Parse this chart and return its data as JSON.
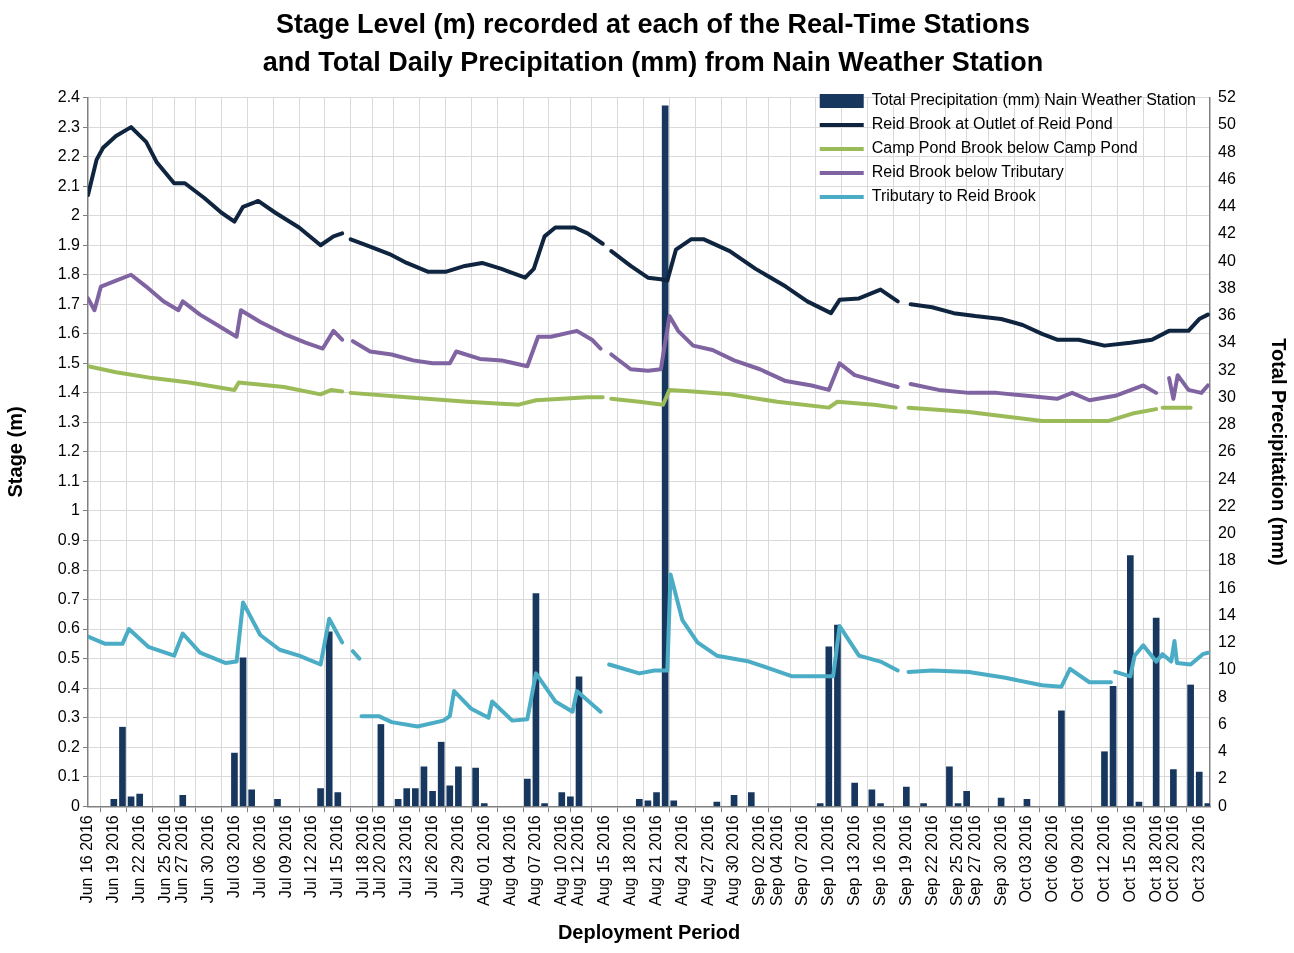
{
  "chart_data": {
    "type": "line",
    "title": "Stage Level (m) recorded at each of the Real-Time Stations and Total Daily Precipitation (mm) from Nain Weather Station",
    "xlabel": "Deployment Period",
    "ylabel": "Stage (m)",
    "y2label": "Total Precipitation (mm)",
    "legend": "top right",
    "grid": true,
    "xlim": [
      "2016-06-16",
      "2016-10-24T06:00"
    ],
    "xticks": [
      {
        "value": "2016-06-16",
        "label": "Jun 16 2016"
      },
      {
        "value": "2016-06-19",
        "label": "Jun 19 2016"
      },
      {
        "value": "2016-06-22",
        "label": "Jun 22 2016"
      },
      {
        "value": "2016-06-25",
        "label": "Jun 25 2016"
      },
      {
        "value": "2016-06-27",
        "label": "Jun 27 2016"
      },
      {
        "value": "2016-06-30",
        "label": "Jun 30 2016"
      },
      {
        "value": "2016-07-03",
        "label": "Jul 03 2016"
      },
      {
        "value": "2016-07-06",
        "label": "Jul 06 2016"
      },
      {
        "value": "2016-07-09",
        "label": "Jul 09 2016"
      },
      {
        "value": "2016-07-12",
        "label": "Jul 12 2016"
      },
      {
        "value": "2016-07-15",
        "label": "Jul 15 2016"
      },
      {
        "value": "2016-07-18",
        "label": "Jul 18 2016"
      },
      {
        "value": "2016-07-20",
        "label": "Jul 20 2016"
      },
      {
        "value": "2016-07-23",
        "label": "Jul 23 2016"
      },
      {
        "value": "2016-07-26",
        "label": "Jul 26 2016"
      },
      {
        "value": "2016-07-29",
        "label": "Jul 29 2016"
      },
      {
        "value": "2016-08-01",
        "label": "Aug 01 2016"
      },
      {
        "value": "2016-08-04",
        "label": "Aug 04 2016"
      },
      {
        "value": "2016-08-07",
        "label": "Aug 07 2016"
      },
      {
        "value": "2016-08-10",
        "label": "Aug 10 2016"
      },
      {
        "value": "2016-08-12",
        "label": "Aug 12 2016"
      },
      {
        "value": "2016-08-15",
        "label": "Aug 15 2016"
      },
      {
        "value": "2016-08-18",
        "label": "Aug 18 2016"
      },
      {
        "value": "2016-08-21",
        "label": "Aug 21 2016"
      },
      {
        "value": "2016-08-24",
        "label": "Aug 24 2016"
      },
      {
        "value": "2016-08-27",
        "label": "Aug 27 2016"
      },
      {
        "value": "2016-08-30",
        "label": "Aug 30 2016"
      },
      {
        "value": "2016-09-02",
        "label": "Sep 02 2016"
      },
      {
        "value": "2016-09-04",
        "label": "Sep 04 2016"
      },
      {
        "value": "2016-09-07",
        "label": "Sep 07 2016"
      },
      {
        "value": "2016-09-10",
        "label": "Sep 10 2016"
      },
      {
        "value": "2016-09-13",
        "label": "Sep 13 2016"
      },
      {
        "value": "2016-09-16",
        "label": "Sep 16 2016"
      },
      {
        "value": "2016-09-19",
        "label": "Sep 19 2016"
      },
      {
        "value": "2016-09-22",
        "label": "Sep 22 2016"
      },
      {
        "value": "2016-09-25",
        "label": "Sep 25 2016"
      },
      {
        "value": "2016-09-27",
        "label": "Sep 27 2016"
      },
      {
        "value": "2016-09-30",
        "label": "Sep 30 2016"
      },
      {
        "value": "2016-10-03",
        "label": "Oct 03 2016"
      },
      {
        "value": "2016-10-06",
        "label": "Oct 06 2016"
      },
      {
        "value": "2016-10-09",
        "label": "Oct 09 2016"
      },
      {
        "value": "2016-10-12",
        "label": "Oct 12 2016"
      },
      {
        "value": "2016-10-15",
        "label": "Oct 15 2016"
      },
      {
        "value": "2016-10-18",
        "label": "Oct 18 2016"
      },
      {
        "value": "2016-10-20",
        "label": "Oct 20 2016"
      },
      {
        "value": "2016-10-23",
        "label": "Oct 23 2016"
      }
    ],
    "ylim": [
      0,
      2.4
    ],
    "yticks": [
      0,
      0.1,
      0.2,
      0.3,
      0.4,
      0.5,
      0.6,
      0.7,
      0.8,
      0.9,
      1,
      1.1,
      1.2,
      1.3,
      1.4,
      1.5,
      1.6,
      1.7,
      1.8,
      1.9,
      2,
      2.1,
      2.2,
      2.3,
      2.4
    ],
    "y2lim": [
      0,
      52
    ],
    "y2ticks": [
      0,
      2,
      4,
      6,
      8,
      10,
      12,
      14,
      16,
      18,
      20,
      22,
      24,
      26,
      28,
      30,
      32,
      34,
      36,
      38,
      40,
      42,
      44,
      46,
      48,
      50,
      52
    ],
    "series": [
      {
        "name": "Total Precipitation (mm) Nain Weather Station",
        "type": "bar",
        "axis": "y2",
        "color": "#17375e",
        "x": [
          "2016-06-19",
          "2016-06-20",
          "2016-06-21",
          "2016-06-22",
          "2016-06-27",
          "2016-07-03",
          "2016-07-04",
          "2016-07-05",
          "2016-07-08",
          "2016-07-13",
          "2016-07-14",
          "2016-07-15",
          "2016-07-20",
          "2016-07-22",
          "2016-07-23",
          "2016-07-24",
          "2016-07-25",
          "2016-07-26",
          "2016-07-27",
          "2016-07-28",
          "2016-07-29",
          "2016-07-31",
          "2016-08-01",
          "2016-08-06",
          "2016-08-07",
          "2016-08-08",
          "2016-08-10",
          "2016-08-11",
          "2016-08-12",
          "2016-08-19",
          "2016-08-20",
          "2016-08-21",
          "2016-08-22",
          "2016-08-23",
          "2016-08-28",
          "2016-08-30",
          "2016-09-01",
          "2016-09-09",
          "2016-09-10",
          "2016-09-11",
          "2016-09-13",
          "2016-09-15",
          "2016-09-16",
          "2016-09-19",
          "2016-09-21",
          "2016-09-24",
          "2016-09-25",
          "2016-09-26",
          "2016-09-30",
          "2016-10-03",
          "2016-10-07",
          "2016-10-12",
          "2016-10-13",
          "2016-10-15",
          "2016-10-16",
          "2016-10-18",
          "2016-10-20",
          "2016-10-22",
          "2016-10-23",
          "2016-10-24"
        ],
        "values": [
          0.5,
          5.8,
          0.7,
          0.9,
          0.8,
          3.9,
          10.9,
          1.2,
          0.5,
          1.3,
          12.8,
          1.0,
          6.0,
          0.5,
          1.3,
          1.3,
          2.9,
          1.1,
          4.7,
          1.5,
          2.9,
          2.8,
          0.2,
          2.0,
          15.6,
          0.2,
          1.0,
          0.7,
          9.5,
          0.5,
          0.4,
          1.0,
          51.4,
          0.4,
          0.3,
          0.8,
          1.0,
          0.2,
          11.7,
          13.3,
          1.7,
          1.2,
          0.2,
          1.4,
          0.2,
          2.9,
          0.2,
          1.1,
          0.6,
          0.5,
          7.0,
          4.0,
          8.8,
          18.4,
          0.3,
          13.8,
          2.7,
          8.9,
          2.5,
          0.2
        ]
      },
      {
        "name": "Reid Brook at Outlet of Reid Pond",
        "color": "#0f243e",
        "x": [
          "2016-06-16",
          "2016-06-17",
          "2016-06-17T18:00",
          "2016-06-19T06:00",
          "2016-06-21",
          "2016-06-22T18:00",
          "2016-06-24",
          "2016-06-26",
          "2016-06-27T06:00",
          "2016-06-29T12:00",
          "2016-07-01T12:00",
          "2016-07-03",
          "2016-07-04",
          "2016-07-05T18:00",
          "2016-07-07T18:00",
          "2016-07-10T12:00",
          "2016-07-13",
          "2016-07-14T12:00",
          "2016-07-15T12:00",
          "2016-07-16",
          "2016-07-16T12:00",
          "2016-07-18T18:00",
          "2016-07-21",
          "2016-07-23",
          "2016-07-25T12:00",
          "2016-07-27T12:00",
          "2016-07-29T18:00",
          "2016-07-31T18:00",
          "2016-08-03",
          "2016-08-05T18:00",
          "2016-08-06T18:00",
          "2016-08-08",
          "2016-08-09T06:00",
          "2016-08-11T12:00",
          "2016-08-13",
          "2016-08-14T18:00",
          "2016-08-15T06:00",
          "2016-08-15T18:00",
          "2016-08-18",
          "2016-08-20",
          "2016-08-21T12:00",
          "2016-08-22T06:00",
          "2016-08-23T06:00",
          "2016-08-25",
          "2016-08-26T12:00",
          "2016-08-29T12:00",
          "2016-09-01T12:00",
          "2016-09-05",
          "2016-09-07T12:00",
          "2016-09-10T06:00",
          "2016-09-11T06:00",
          "2016-09-13T12:00",
          "2016-09-16",
          "2016-09-18",
          "2016-09-18T18:00",
          "2016-09-19T12:00",
          "2016-09-22",
          "2016-09-24T12:00",
          "2016-09-27",
          "2016-09-30",
          "2016-10-02T12:00",
          "2016-10-04T18:00",
          "2016-10-06T12:00",
          "2016-10-09",
          "2016-10-12",
          "2016-10-15",
          "2016-10-17T12:00",
          "2016-10-19T12:00",
          "2016-10-21T18:00",
          "2016-10-23",
          "2016-10-24"
        ],
        "values": [
          2.07,
          2.19,
          2.23,
          2.27,
          2.3,
          2.25,
          2.18,
          2.11,
          2.11,
          2.06,
          2.01,
          1.98,
          2.03,
          2.05,
          2.01,
          1.96,
          1.9,
          1.93,
          1.94,
          null,
          1.92,
          1.895,
          1.87,
          1.84,
          1.81,
          1.81,
          1.83,
          1.84,
          1.82,
          1.79,
          1.82,
          1.93,
          1.96,
          1.96,
          1.94,
          1.905,
          null,
          1.88,
          1.83,
          1.79,
          1.785,
          1.78,
          1.885,
          1.92,
          1.92,
          1.88,
          1.82,
          1.76,
          1.71,
          1.67,
          1.715,
          1.72,
          1.75,
          1.71,
          null,
          1.7,
          1.69,
          1.67,
          1.66,
          1.65,
          1.63,
          1.6,
          1.58,
          1.58,
          1.56,
          1.57,
          1.58,
          1.61,
          1.61,
          1.65,
          1.665
        ]
      },
      {
        "name": "Camp Pond Brook below Camp Pond",
        "color": "#9bbb59",
        "x": [
          "2016-06-16",
          "2016-06-19T06:00",
          "2016-06-23T12:00",
          "2016-06-27T18:00",
          "2016-07-03",
          "2016-07-03T12:00",
          "2016-07-08T18:00",
          "2016-07-13",
          "2016-07-14T06:00",
          "2016-07-15T12:00",
          "2016-07-16",
          "2016-07-16T12:00",
          "2016-07-23",
          "2016-07-30",
          "2016-08-05",
          "2016-08-07",
          "2016-08-13",
          "2016-08-14T18:00",
          "2016-08-15T06:00",
          "2016-08-15T18:00",
          "2016-08-19",
          "2016-08-21T18:00",
          "2016-08-22T12:00",
          "2016-08-25T06:00",
          "2016-08-29T12:00",
          "2016-09-04",
          "2016-09-10",
          "2016-09-11",
          "2016-09-15T06:00",
          "2016-09-17T18:00",
          "2016-09-18T12:00",
          "2016-09-19T06:00",
          "2016-09-26T06:00",
          "2016-09-30T12:00",
          "2016-10-04T18:00",
          "2016-10-12T12:00",
          "2016-10-15T06:00",
          "2016-10-18",
          "2016-10-18T12:00",
          "2016-10-18T18:00",
          "2016-10-22"
        ],
        "values": [
          1.49,
          1.47,
          1.45,
          1.435,
          1.41,
          1.435,
          1.42,
          1.395,
          1.41,
          1.405,
          null,
          1.4,
          1.385,
          1.37,
          1.36,
          1.375,
          1.385,
          1.385,
          null,
          1.38,
          1.37,
          1.36,
          1.41,
          1.405,
          1.395,
          1.37,
          1.35,
          1.37,
          1.36,
          1.35,
          null,
          1.35,
          1.335,
          1.32,
          1.305,
          1.305,
          1.33,
          1.345,
          null,
          1.35,
          1.35
        ]
      },
      {
        "name": "Reid Brook below Tributary",
        "color": "#8064a2",
        "x": [
          "2016-06-16",
          "2016-06-16T18:00",
          "2016-06-17T12:00",
          "2016-06-19T06:00",
          "2016-06-21",
          "2016-06-22T18:00",
          "2016-06-24T18:00",
          "2016-06-26T12:00",
          "2016-06-27",
          "2016-06-29",
          "2016-07-01",
          "2016-07-03T06:00",
          "2016-07-03T18:00",
          "2016-07-06",
          "2016-07-08T18:00",
          "2016-07-11T06:00",
          "2016-07-13T06:00",
          "2016-07-14T12:00",
          "2016-07-15T12:00",
          "2016-07-16",
          "2016-07-16T18:00",
          "2016-07-18T18:00",
          "2016-07-21T06:00",
          "2016-07-23T18:00",
          "2016-07-26",
          "2016-07-28",
          "2016-07-28T18:00",
          "2016-07-31T12:00",
          "2016-08-03",
          "2016-08-06",
          "2016-08-07T06:00",
          "2016-08-08T18:00",
          "2016-08-11T18:00",
          "2016-08-13T12:00",
          "2016-08-14T12:00",
          "2016-08-15T06:00",
          "2016-08-15T18:00",
          "2016-08-18",
          "2016-08-20",
          "2016-08-21T12:00",
          "2016-08-22T12:00",
          "2016-08-23T12:00",
          "2016-08-25T06:00",
          "2016-08-27T12:00",
          "2016-08-30",
          "2016-09-02",
          "2016-09-05",
          "2016-09-08",
          "2016-09-10",
          "2016-09-11T06:00",
          "2016-09-13",
          "2016-09-15T12:00",
          "2016-09-18",
          "2016-09-18T18:00",
          "2016-09-19T12:00",
          "2016-09-22T18:00",
          "2016-09-26T06:00",
          "2016-09-29T12:00",
          "2016-10-03",
          "2016-10-06T12:00",
          "2016-10-08T06:00",
          "2016-10-10T06:00",
          "2016-10-13T06:00",
          "2016-10-16T12:00",
          "2016-10-18",
          "2016-10-18T12:00",
          "2016-10-19T12:00",
          "2016-10-20",
          "2016-10-20T12:00",
          "2016-10-21T18:00",
          "2016-10-23T06:00",
          "2016-10-24"
        ],
        "values": [
          1.72,
          1.68,
          1.76,
          1.78,
          1.8,
          1.76,
          1.71,
          1.68,
          1.71,
          1.665,
          1.63,
          1.59,
          1.68,
          1.64,
          1.6,
          1.57,
          1.55,
          1.61,
          1.58,
          null,
          1.575,
          1.54,
          1.53,
          1.51,
          1.5,
          1.5,
          1.54,
          1.515,
          1.51,
          1.49,
          1.59,
          1.59,
          1.61,
          1.58,
          1.55,
          null,
          1.53,
          1.48,
          1.475,
          1.48,
          1.66,
          1.61,
          1.56,
          1.545,
          1.51,
          1.48,
          1.44,
          1.425,
          1.41,
          1.5,
          1.46,
          1.44,
          1.42,
          null,
          1.43,
          1.41,
          1.4,
          1.4,
          1.39,
          1.38,
          1.4,
          1.375,
          1.39,
          1.425,
          1.4,
          null,
          1.45,
          1.38,
          1.46,
          1.41,
          1.4,
          1.425
        ]
      },
      {
        "name": "Tributary to Reid Brook",
        "color": "#4bacc6",
        "x": [
          "2016-06-16",
          "2016-06-18",
          "2016-06-20",
          "2016-06-20T18:00",
          "2016-06-23",
          "2016-06-26",
          "2016-06-27",
          "2016-06-29",
          "2016-07-02",
          "2016-07-03T06:00",
          "2016-07-04",
          "2016-07-06",
          "2016-07-08T06:00",
          "2016-07-10T12:00",
          "2016-07-13",
          "2016-07-14",
          "2016-07-15T12:00",
          "2016-07-16",
          "2016-07-16T18:00",
          "2016-07-17T12:00",
          "2016-07-17T15:00",
          "2016-07-17T18:00",
          "2016-07-19T18:00",
          "2016-07-21T06:00",
          "2016-07-24T06:00",
          "2016-07-27T06:00",
          "2016-07-28",
          "2016-07-28T12:00",
          "2016-07-30T12:00",
          "2016-08-01T12:00",
          "2016-08-01T22:00",
          "2016-08-04T06:00",
          "2016-08-06",
          "2016-08-07",
          "2016-08-09T06:00",
          "2016-08-11T06:00",
          "2016-08-11T18:00",
          "2016-08-14T12:00",
          "2016-08-15",
          "2016-08-15T12:00",
          "2016-08-19",
          "2016-08-20T18:00",
          "2016-08-22T06:00",
          "2016-08-22T15:00",
          "2016-08-24",
          "2016-08-25T18:00",
          "2016-08-28",
          "2016-08-31T18:00",
          "2016-09-05T18:00",
          "2016-09-10T12:00",
          "2016-09-11T06:00",
          "2016-09-13T12:00",
          "2016-09-16",
          "2016-09-18",
          "2016-09-18T18:00",
          "2016-09-19T06:00",
          "2016-09-22",
          "2016-09-26T06:00",
          "2016-09-30T12:00",
          "2016-10-04T18:00",
          "2016-10-07",
          "2016-10-08",
          "2016-10-10T06:00",
          "2016-10-12T18:00",
          "2016-10-13",
          "2016-10-13T06:00",
          "2016-10-15",
          "2016-10-15T12:00",
          "2016-10-16T12:00",
          "2016-10-18",
          "2016-10-18T18:00",
          "2016-10-19T18:00",
          "2016-10-20T03:00",
          "2016-10-20T10:00",
          "2016-10-22",
          "2016-10-23T10:00",
          "2016-10-24"
        ],
        "values": [
          0.575,
          0.55,
          0.55,
          0.6,
          0.54,
          0.51,
          0.585,
          0.52,
          0.485,
          0.49,
          0.69,
          0.58,
          0.53,
          0.51,
          0.48,
          0.635,
          0.555,
          null,
          0.525,
          0.5,
          null,
          0.305,
          0.305,
          0.285,
          0.27,
          0.29,
          0.305,
          0.39,
          0.33,
          0.3,
          0.355,
          0.29,
          0.295,
          0.45,
          0.355,
          0.32,
          0.39,
          0.32,
          null,
          0.48,
          0.45,
          0.46,
          0.46,
          0.785,
          0.63,
          0.555,
          0.51,
          0.49,
          0.44,
          0.44,
          0.61,
          0.51,
          0.49,
          0.46,
          null,
          0.455,
          0.46,
          0.455,
          0.435,
          0.41,
          0.405,
          0.465,
          0.42,
          0.42,
          null,
          0.455,
          0.44,
          0.51,
          0.545,
          0.49,
          0.515,
          0.49,
          0.56,
          0.485,
          0.48,
          0.515,
          0.52
        ]
      }
    ]
  }
}
